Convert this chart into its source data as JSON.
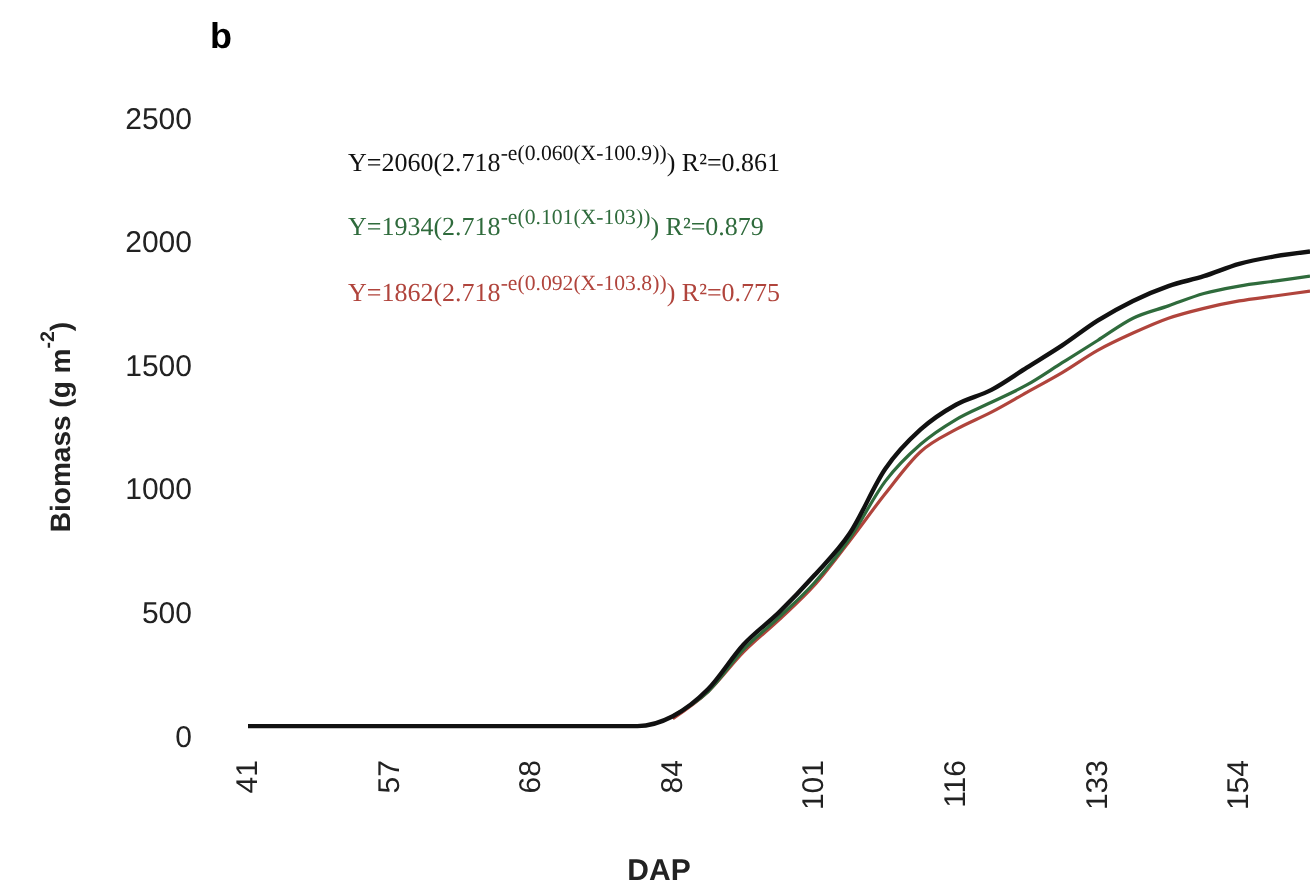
{
  "chart_data": {
    "type": "line",
    "title": "b",
    "xlabel": "DAP",
    "ylabel": "Biomass (g m$^{-2}$)",
    "categories": [
      "41",
      null,
      null,
      null,
      "57",
      null,
      null,
      null,
      "68",
      null,
      null,
      null,
      "84",
      null,
      null,
      null,
      "101",
      null,
      null,
      null,
      "116",
      null,
      null,
      null,
      "133",
      null,
      null,
      null,
      "154",
      null,
      null
    ],
    "ylim": [
      0,
      2500
    ],
    "yticks": [
      0,
      500,
      1000,
      1500,
      2000,
      2500
    ],
    "grid": false,
    "legend": "top left",
    "marker": "none",
    "line_style": "solid",
    "series": [
      {
        "name": "Y=2060(2.718$^{-e(0.060(X-100.9))}$) R²=0.861",
        "color": "#111111",
        "values": [
          40,
          40,
          40,
          40,
          40,
          40,
          40,
          40,
          40,
          40,
          40,
          40,
          80,
          190,
          370,
          500,
          650,
          820,
          1080,
          1240,
          1340,
          1400,
          1490,
          1580,
          1680,
          1760,
          1820,
          1860,
          1910,
          1940,
          1960
        ]
      },
      {
        "name": "Y=1934(2.718$^{-e(0.101(X-103))}$) R²=0.879",
        "color": "#2f6b3c",
        "values": [
          null,
          null,
          null,
          null,
          null,
          null,
          null,
          null,
          null,
          null,
          null,
          null,
          80,
          180,
          350,
          480,
          620,
          800,
          1030,
          1180,
          1280,
          1350,
          1420,
          1510,
          1600,
          1690,
          1740,
          1790,
          1820,
          1840,
          1860
        ]
      },
      {
        "name": "Y=1862(2.718$^{-e(0.092(X-103.8))}$) R²=0.775",
        "color": "#b0443c",
        "values": [
          null,
          null,
          null,
          null,
          null,
          null,
          null,
          null,
          null,
          null,
          null,
          null,
          70,
          180,
          340,
          470,
          610,
          790,
          980,
          1150,
          1240,
          1310,
          1390,
          1470,
          1560,
          1630,
          1690,
          1730,
          1760,
          1780,
          1800
        ]
      }
    ]
  }
}
